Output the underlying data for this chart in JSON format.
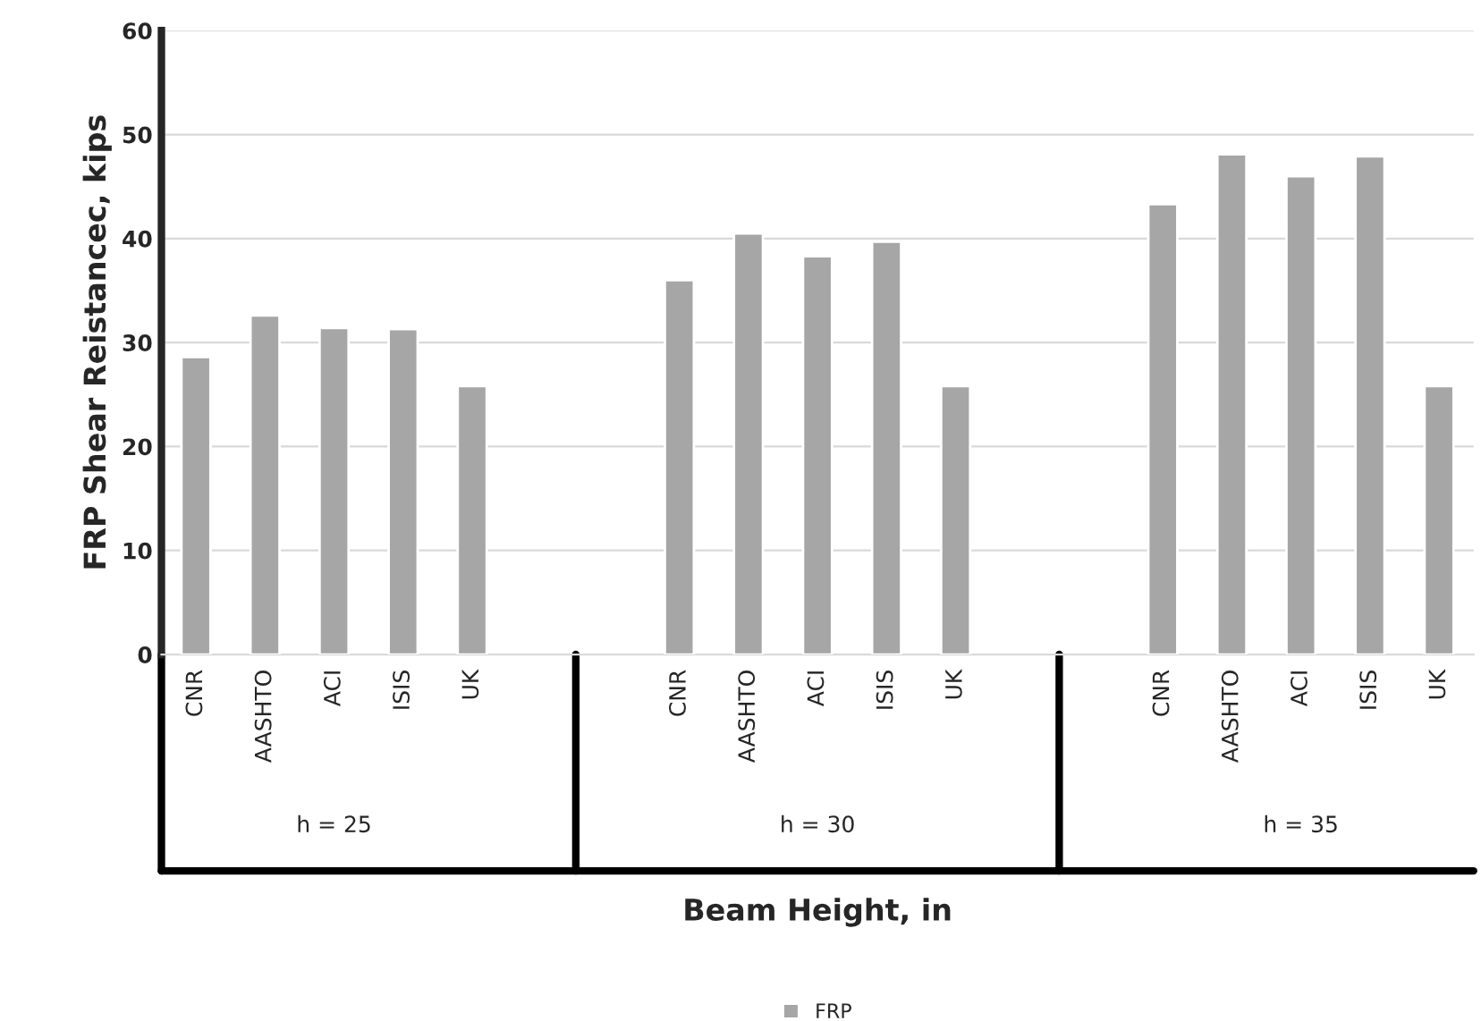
{
  "chart_data": {
    "type": "bar",
    "categories": [
      "CNR",
      "AASHTO",
      "ACI",
      "ISIS",
      "UK",
      null,
      null,
      "CNR",
      "AASHTO",
      "ACI",
      "ISIS",
      "UK",
      null,
      null,
      "CNR",
      "AASHTO",
      "ACI",
      "ISIS",
      "UK"
    ],
    "series": [
      {
        "name": "FRP",
        "color": "#a6a6a6",
        "values": [
          28.6,
          32.6,
          31.4,
          31.3,
          25.8,
          null,
          null,
          36.0,
          40.5,
          38.3,
          39.7,
          25.8,
          null,
          null,
          43.3,
          48.1,
          46.0,
          47.9,
          25.8
        ]
      }
    ],
    "annotations": [
      "h = 25",
      "h = 30",
      "h = 35"
    ],
    "xlabel": "Beam Height, in",
    "ylabel": "FRP Shear Reistancec, kips",
    "ylim": [
      0,
      60
    ],
    "yticks": [
      0,
      10,
      20,
      30,
      40,
      50,
      60
    ],
    "grid": "y",
    "legend": "bottom"
  }
}
